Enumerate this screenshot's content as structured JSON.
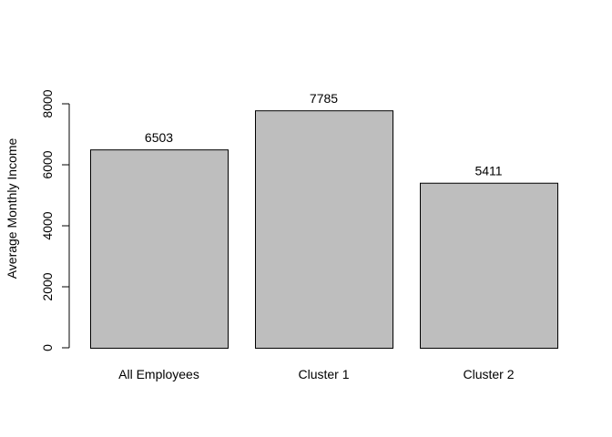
{
  "chart_data": {
    "type": "bar",
    "title": "",
    "xlabel": "",
    "ylabel": "Average Monthly Income",
    "categories": [
      "All Employees",
      "Cluster 1",
      "Cluster 2"
    ],
    "values": [
      6503,
      7785,
      5411
    ],
    "data_labels": [
      "6503",
      "7785",
      "5411"
    ],
    "ylim": [
      0,
      8000
    ],
    "yticks": [
      0,
      2000,
      4000,
      6000,
      8000
    ],
    "ytick_labels": [
      "0",
      "2000",
      "4000",
      "6000",
      "8000"
    ],
    "bar_color": "#bebebe",
    "bar_border_color": "#000000",
    "grid": false,
    "legend": "none"
  }
}
